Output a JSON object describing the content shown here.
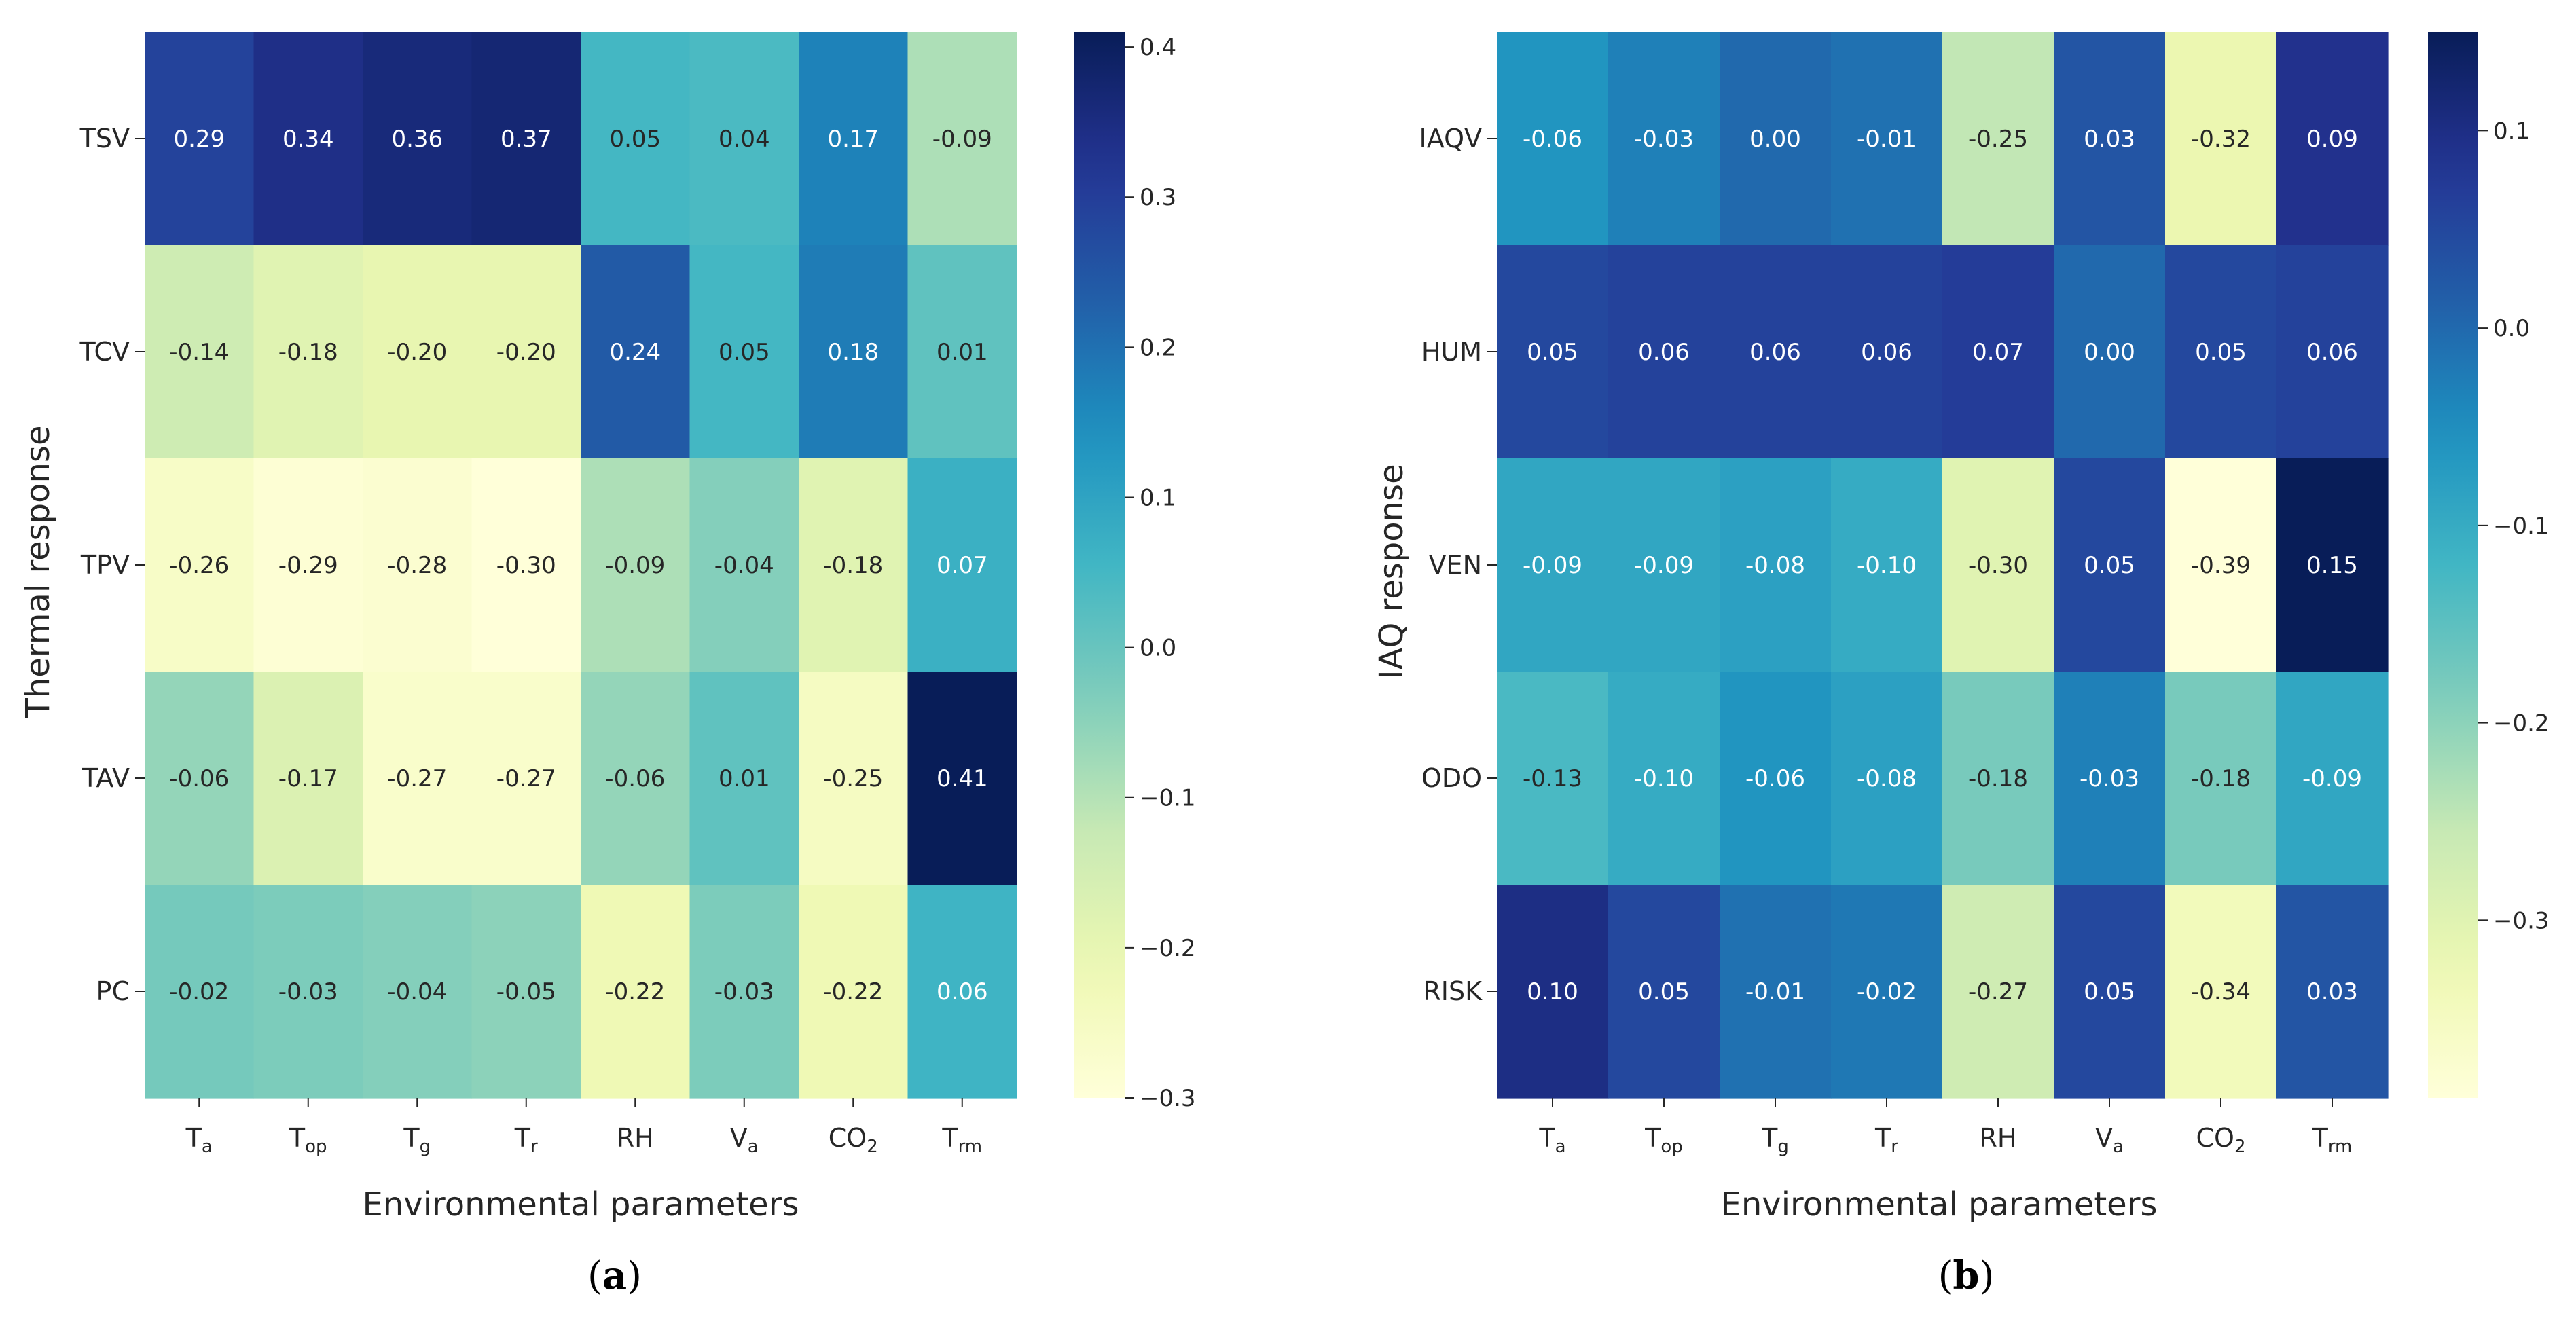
{
  "chart_data": [
    {
      "type": "heatmap",
      "panel_label": "(a)",
      "panel_letter": "a",
      "xlabel": "Environmental parameters",
      "ylabel": "Thermal response",
      "x_ticks": [
        {
          "base": "T",
          "sub": "a"
        },
        {
          "base": "T",
          "sub": "op"
        },
        {
          "base": "T",
          "sub": "g"
        },
        {
          "base": "T",
          "sub": "r"
        },
        {
          "base": "RH",
          "sub": ""
        },
        {
          "base": "V",
          "sub": "a"
        },
        {
          "base": "CO",
          "sub": "2"
        },
        {
          "base": "T",
          "sub": "rm"
        }
      ],
      "rows": [
        "TSV",
        "TCV",
        "TPV",
        "TAV",
        "PC"
      ],
      "values": [
        [
          0.29,
          0.34,
          0.36,
          0.37,
          0.05,
          0.04,
          0.17,
          -0.09
        ],
        [
          -0.14,
          -0.18,
          -0.2,
          -0.2,
          0.24,
          0.05,
          0.18,
          0.01
        ],
        [
          -0.26,
          -0.29,
          -0.28,
          -0.3,
          -0.09,
          -0.04,
          -0.18,
          0.07
        ],
        [
          -0.06,
          -0.17,
          -0.27,
          -0.27,
          -0.06,
          0.01,
          -0.25,
          0.41
        ],
        [
          -0.02,
          -0.03,
          -0.04,
          -0.05,
          -0.22,
          -0.03,
          -0.22,
          0.06
        ]
      ],
      "labels": [
        [
          "0.29",
          "0.34",
          "0.36",
          "0.37",
          "0.05",
          "0.04",
          "0.17",
          "-0.09"
        ],
        [
          "-0.14",
          "-0.18",
          "-0.20",
          "-0.20",
          "0.24",
          "0.05",
          "0.18",
          "0.01"
        ],
        [
          "-0.26",
          "-0.29",
          "-0.28",
          "-0.30",
          "-0.09",
          "-0.04",
          "-0.18",
          "0.07"
        ],
        [
          "-0.06",
          "-0.17",
          "-0.27",
          "-0.27",
          "-0.06",
          "0.01",
          "-0.25",
          "0.41"
        ],
        [
          "-0.02",
          "-0.03",
          "-0.04",
          "-0.05",
          "-0.22",
          "-0.03",
          "-0.22",
          "0.06"
        ]
      ],
      "colorbar": {
        "vmin": -0.3,
        "vmax": 0.41,
        "colormap": "YlGnBu",
        "ticks": [
          0.4,
          0.3,
          0.2,
          0.1,
          0.0,
          -0.1,
          -0.2,
          -0.3
        ],
        "tick_labels": [
          "0.4",
          "0.3",
          "0.2",
          "0.1",
          "0.0",
          "−0.1",
          "−0.2",
          "−0.3"
        ]
      }
    },
    {
      "type": "heatmap",
      "panel_label": "(b)",
      "panel_letter": "b",
      "xlabel": "Environmental parameters",
      "ylabel": "IAQ response",
      "x_ticks": [
        {
          "base": "T",
          "sub": "a"
        },
        {
          "base": "T",
          "sub": "op"
        },
        {
          "base": "T",
          "sub": "g"
        },
        {
          "base": "T",
          "sub": "r"
        },
        {
          "base": "RH",
          "sub": ""
        },
        {
          "base": "V",
          "sub": "a"
        },
        {
          "base": "CO",
          "sub": "2"
        },
        {
          "base": "T",
          "sub": "rm"
        }
      ],
      "rows": [
        "IAQV",
        "HUM",
        "VEN",
        "ODO",
        "RISK"
      ],
      "values": [
        [
          -0.06,
          -0.03,
          0.0,
          -0.01,
          -0.25,
          0.03,
          -0.32,
          0.09
        ],
        [
          0.05,
          0.06,
          0.06,
          0.06,
          0.07,
          0.0,
          0.05,
          0.06
        ],
        [
          -0.09,
          -0.09,
          -0.08,
          -0.1,
          -0.3,
          0.05,
          -0.39,
          0.15
        ],
        [
          -0.13,
          -0.1,
          -0.06,
          -0.08,
          -0.18,
          -0.03,
          -0.18,
          -0.09
        ],
        [
          0.1,
          0.05,
          -0.01,
          -0.02,
          -0.27,
          0.05,
          -0.34,
          0.03
        ]
      ],
      "labels": [
        [
          "-0.06",
          "-0.03",
          "0.00",
          "-0.01",
          "-0.25",
          "0.03",
          "-0.32",
          "0.09"
        ],
        [
          "0.05",
          "0.06",
          "0.06",
          "0.06",
          "0.07",
          "0.00",
          "0.05",
          "0.06"
        ],
        [
          "-0.09",
          "-0.09",
          "-0.08",
          "-0.10",
          "-0.30",
          "0.05",
          "-0.39",
          "0.15"
        ],
        [
          "-0.13",
          "-0.10",
          "-0.06",
          "-0.08",
          "-0.18",
          "-0.03",
          "-0.18",
          "-0.09"
        ],
        [
          "0.10",
          "0.05",
          "-0.01",
          "-0.02",
          "-0.27",
          "0.05",
          "-0.34",
          "0.03"
        ]
      ],
      "colorbar": {
        "vmin": -0.39,
        "vmax": 0.15,
        "colormap": "YlGnBu",
        "ticks": [
          0.1,
          0.0,
          -0.1,
          -0.2,
          -0.3
        ],
        "tick_labels": [
          "0.1",
          "0.0",
          "−0.1",
          "−0.2",
          "−0.3"
        ]
      }
    }
  ]
}
